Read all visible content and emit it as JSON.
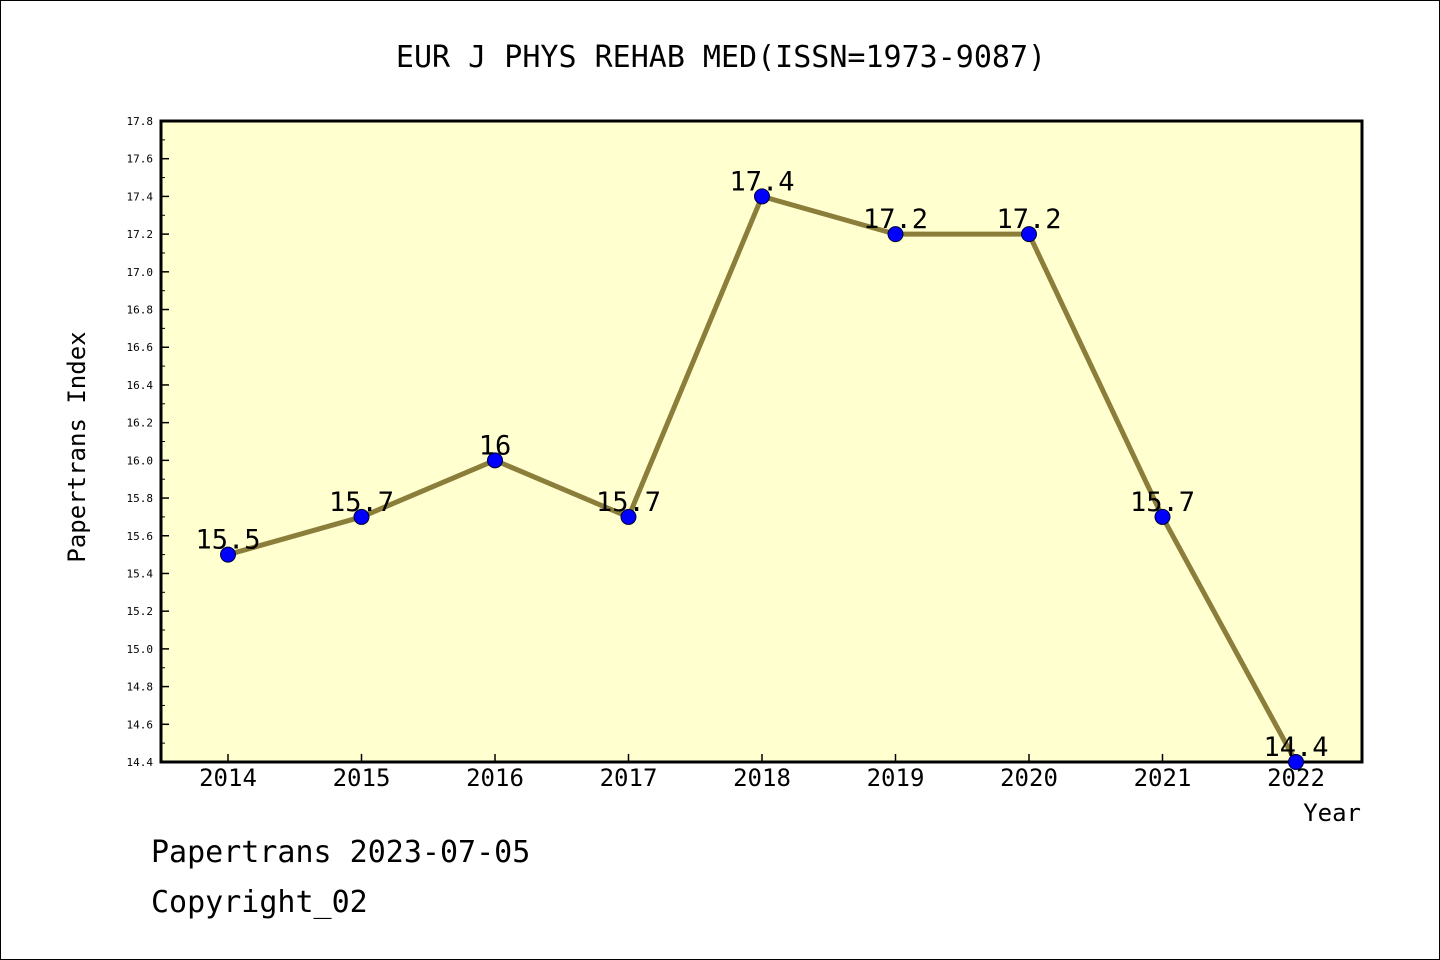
{
  "chart_data": {
    "type": "line",
    "title": "EUR J PHYS REHAB MED(ISSN=1973-9087)",
    "xlabel": "Year",
    "ylabel": "Papertrans Index",
    "categories": [
      "2014",
      "2015",
      "2016",
      "2017",
      "2018",
      "2019",
      "2020",
      "2021",
      "2022"
    ],
    "values": [
      15.5,
      15.7,
      16,
      15.7,
      17.4,
      17.2,
      17.2,
      15.7,
      14.4
    ],
    "value_labels": [
      "15.5",
      "15.7",
      "16",
      "15.7",
      "17.4",
      "17.2",
      "17.2",
      "15.7",
      "14.4"
    ],
    "ylim": [
      14.4,
      17.8
    ],
    "yticks": [
      "14.4",
      "14.6",
      "14.8",
      "15.0",
      "15.2",
      "15.4",
      "15.6",
      "15.8",
      "16.0",
      "16.2",
      "16.4",
      "16.6",
      "16.8",
      "17.0",
      "17.2",
      "17.4",
      "17.6",
      "17.8"
    ],
    "grid": false,
    "legend": "none",
    "colors": {
      "plot_background": "#ffffd0",
      "line": "#8b7d3a",
      "marker": "#0000ff",
      "axis": "#000000"
    }
  },
  "footer": {
    "date_line": "Papertrans 2023-07-05",
    "copyright": "Copyright_02"
  }
}
